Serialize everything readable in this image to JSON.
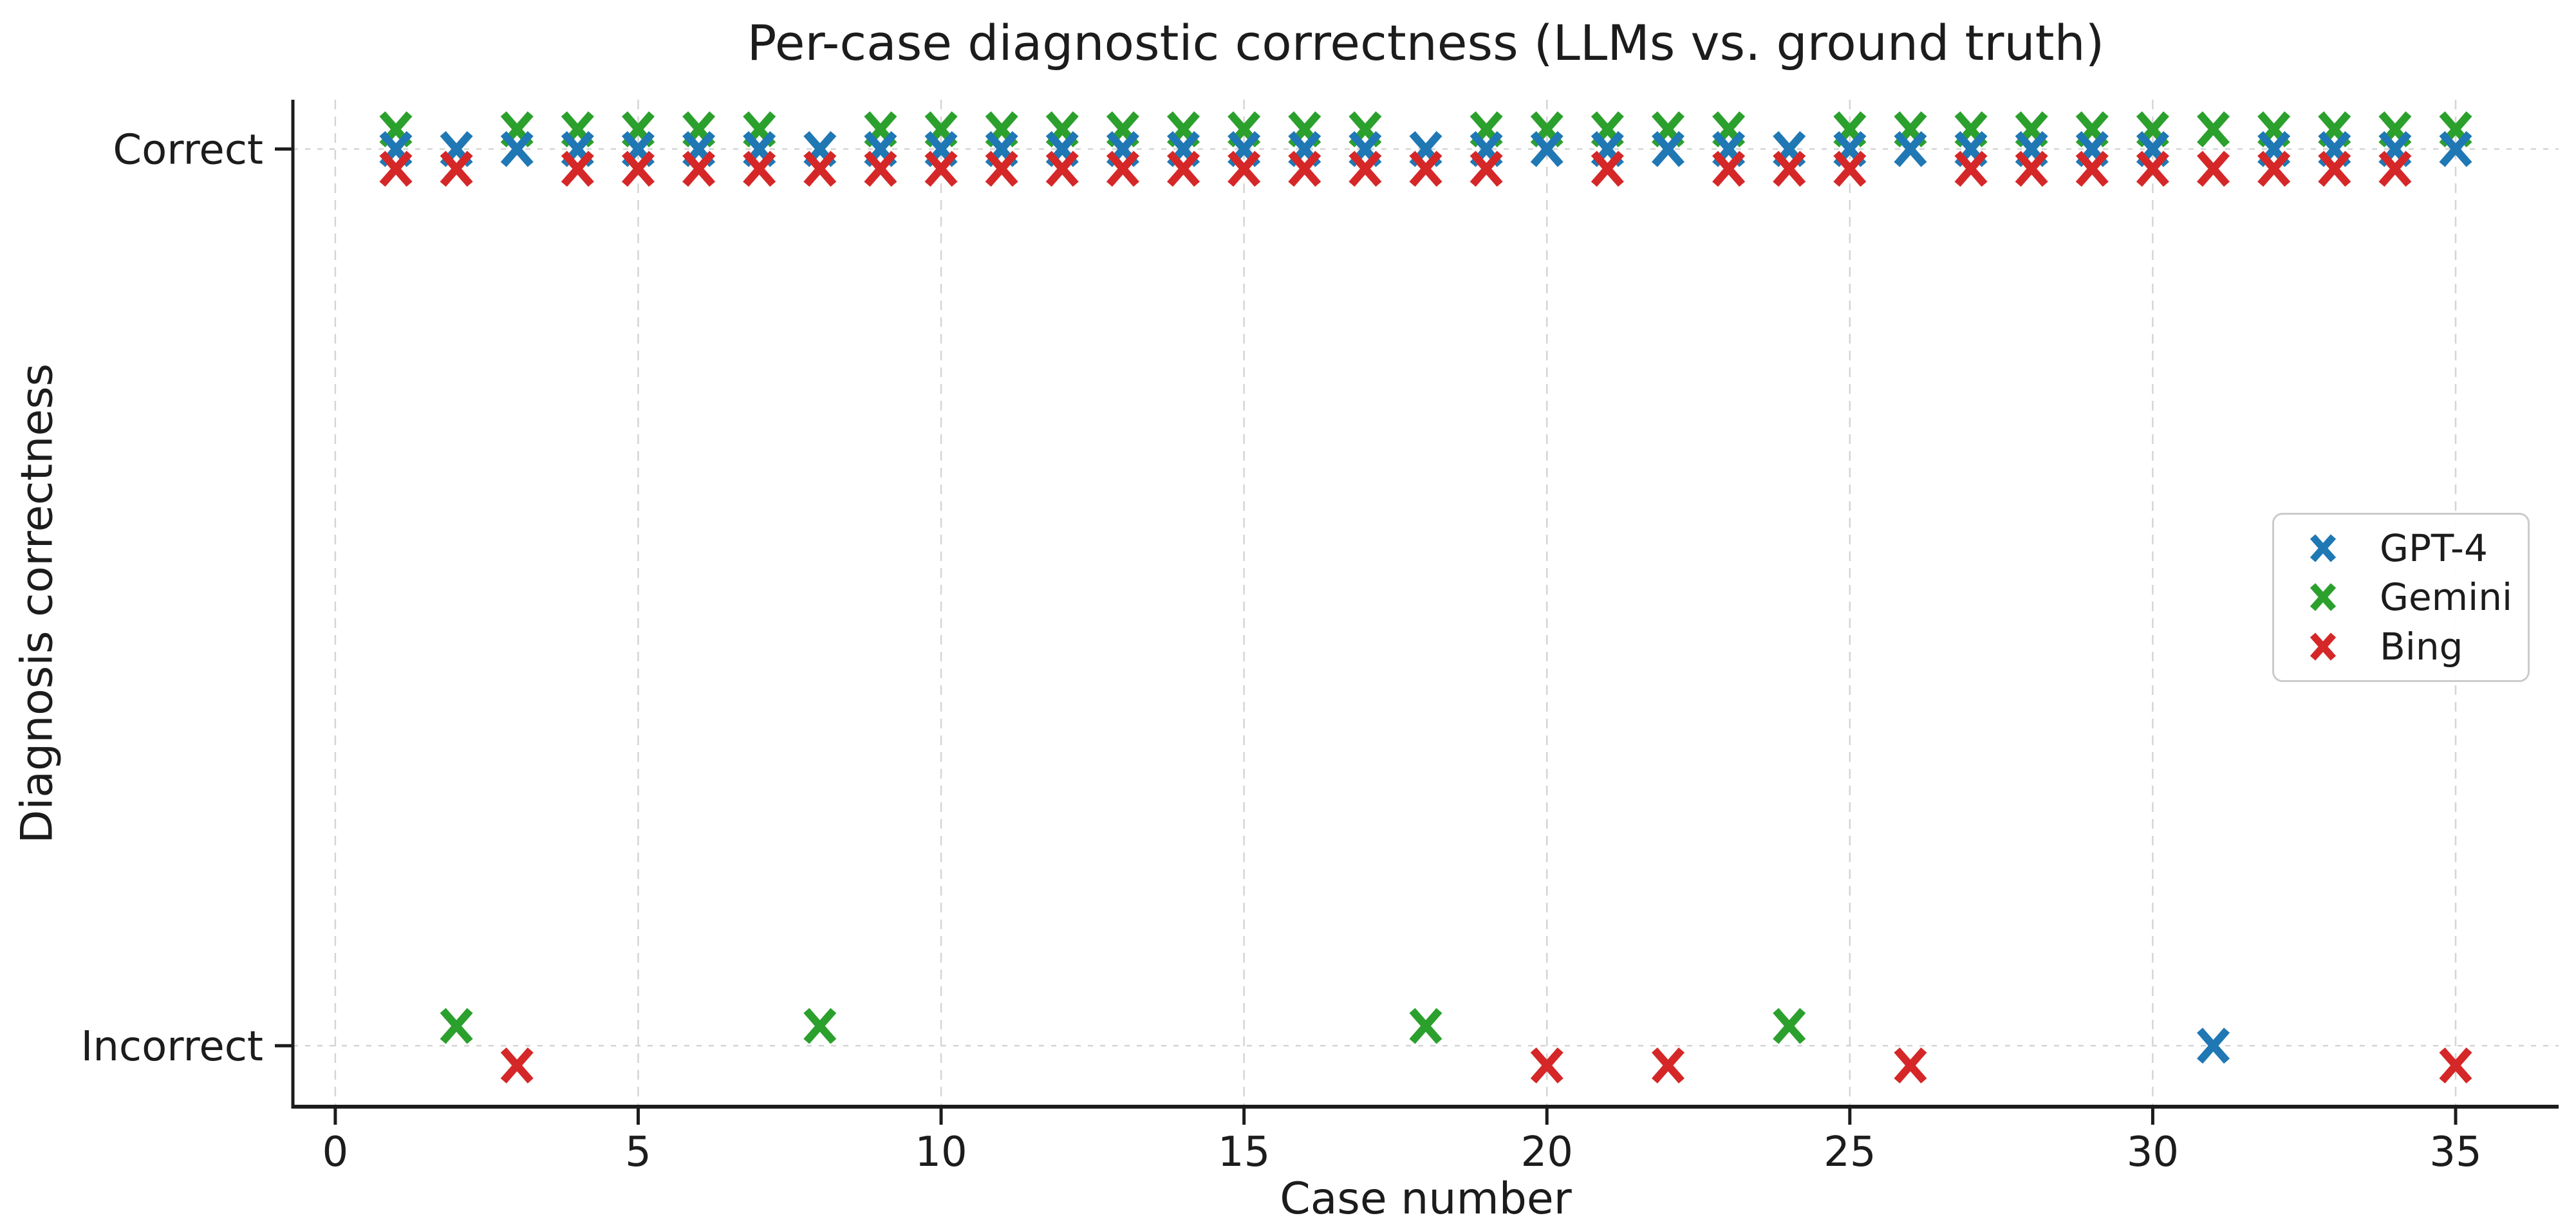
{
  "chart_data": {
    "type": "scatter",
    "title": "Per-case diagnostic correctness (LLMs vs. ground truth)",
    "xlabel": "Case number",
    "ylabel": "Diagnosis correctness",
    "x_ticks": [
      0,
      5,
      10,
      15,
      20,
      25,
      30,
      35
    ],
    "x_tick_labels": [
      "0",
      "5",
      "10",
      "15",
      "20",
      "25",
      "30",
      "35"
    ],
    "y_ticks": [
      {
        "value": 1,
        "label": "Correct"
      },
      {
        "value": 0,
        "label": "Incorrect"
      }
    ],
    "xlim": [
      -0.7,
      36.7
    ],
    "ylim": [
      -0.068,
      1.055
    ],
    "grid": "dashed-light-gray",
    "marker": "x",
    "n_cases": 35,
    "case_numbers": [
      1,
      2,
      3,
      4,
      5,
      6,
      7,
      8,
      9,
      10,
      11,
      12,
      13,
      14,
      15,
      16,
      17,
      18,
      19,
      20,
      21,
      22,
      23,
      24,
      25,
      26,
      27,
      28,
      29,
      30,
      31,
      32,
      33,
      34,
      35
    ],
    "legend_position": "center-right",
    "draw_order": [
      "Gemini",
      "GPT-4",
      "Bing"
    ],
    "series": [
      {
        "name": "GPT-4",
        "color": "#1f77b4",
        "jitter": 0.0,
        "values": [
          1,
          1,
          1,
          1,
          1,
          1,
          1,
          1,
          1,
          1,
          1,
          1,
          1,
          1,
          1,
          1,
          1,
          1,
          1,
          1,
          1,
          1,
          1,
          1,
          1,
          1,
          1,
          1,
          1,
          1,
          0,
          1,
          1,
          1,
          1
        ],
        "incorrect_cases": [
          31
        ]
      },
      {
        "name": "Gemini",
        "color": "#2ca02c",
        "jitter": 0.022,
        "values": [
          1,
          0,
          1,
          1,
          1,
          1,
          1,
          0,
          1,
          1,
          1,
          1,
          1,
          1,
          1,
          1,
          1,
          0,
          1,
          1,
          1,
          1,
          1,
          0,
          1,
          1,
          1,
          1,
          1,
          1,
          1,
          1,
          1,
          1,
          1
        ],
        "incorrect_cases": [
          2,
          8,
          18,
          24
        ]
      },
      {
        "name": "Bing",
        "color": "#d62728",
        "jitter": -0.022,
        "values": [
          1,
          1,
          0,
          1,
          1,
          1,
          1,
          1,
          1,
          1,
          1,
          1,
          1,
          1,
          1,
          1,
          1,
          1,
          1,
          0,
          1,
          0,
          1,
          1,
          1,
          0,
          1,
          1,
          1,
          1,
          1,
          1,
          1,
          1,
          0
        ],
        "incorrect_cases": [
          3,
          20,
          22,
          26,
          35
        ]
      }
    ],
    "axis_color": "#1c1c1c",
    "grid_color": "#d5d5d5",
    "background_color": "#ffffff"
  }
}
